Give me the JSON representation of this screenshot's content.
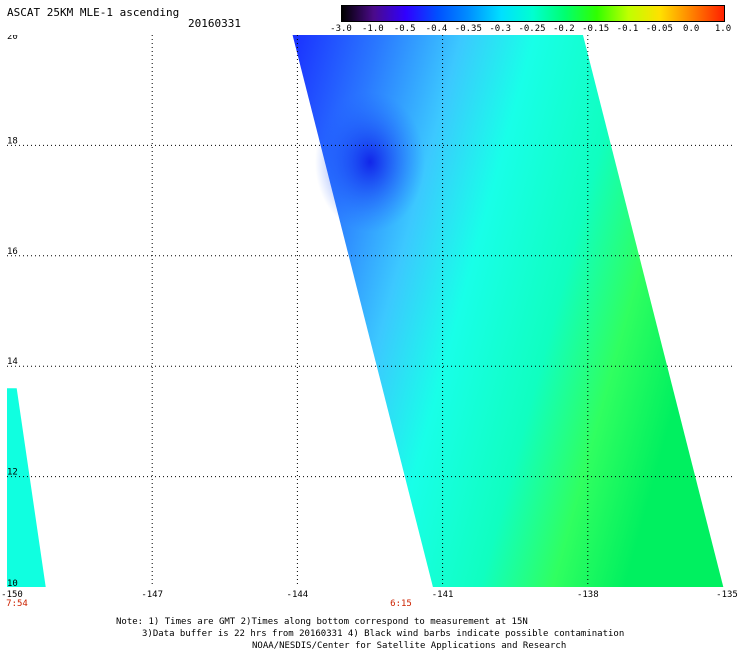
{
  "header": {
    "title": "ASCAT 25KM MLE-1 ascending",
    "date": "20160331"
  },
  "colorbar": {
    "labels": [
      "-3.0",
      "-1.0",
      "-0.5",
      "-0.4",
      "-0.35",
      "-0.3",
      "-0.25",
      "-0.2",
      "-0.15",
      "-0.1",
      "-0.05",
      "0.0",
      "1.0"
    ],
    "colors": [
      "#000000",
      "#4b0a8a",
      "#3000ff",
      "#0050ff",
      "#0090ff",
      "#00e0ff",
      "#00ffd0",
      "#00ff70",
      "#30ff00",
      "#c0ff00",
      "#ffe000",
      "#ff8000",
      "#ff2000"
    ]
  },
  "map": {
    "lon_range": [
      -150,
      -135
    ],
    "lat_range": [
      10,
      20
    ],
    "lat_ticks": [
      "20",
      "18",
      "16",
      "14",
      "12",
      "10"
    ],
    "lon_ticks": [
      "-150",
      "-147",
      "-144",
      "-141",
      "-138",
      "-135"
    ],
    "time_labels": [
      {
        "lon": -150,
        "text": "7:54"
      },
      {
        "lon": -142,
        "text": "6:15"
      }
    ],
    "swaths": [
      {
        "id": "main",
        "corners": [
          [
            -144.1,
            20
          ],
          [
            -138.1,
            20
          ],
          [
            -135.2,
            10
          ],
          [
            -141.2,
            10
          ]
        ]
      },
      {
        "id": "left",
        "corners": [
          [
            -150,
            13.6
          ],
          [
            -149.8,
            13.6
          ],
          [
            -149.2,
            10
          ],
          [
            -150,
            10
          ]
        ]
      }
    ]
  },
  "chart_data": {
    "type": "heatmap",
    "title": "ASCAT 25KM MLE-1 ascending",
    "date": "20160331",
    "xlim": [
      -150,
      -135
    ],
    "ylim": [
      10,
      20
    ],
    "xticks": [
      -150,
      -147,
      -144,
      -141,
      -138,
      -135
    ],
    "yticks": [
      10,
      12,
      14,
      16,
      18,
      20
    ],
    "value_scale": [
      -3.0,
      -1.0,
      -0.5,
      -0.4,
      -0.35,
      -0.3,
      -0.25,
      -0.2,
      -0.15,
      -0.1,
      -0.05,
      0.0,
      1.0
    ],
    "grid": true
  },
  "notes": {
    "line1": "Note: 1) Times are GMT 2)Times along bottom correspond to measurement at 15N",
    "line2": "3)Data buffer is 22 hrs from 20160331 4) Black wind barbs indicate possible contamination",
    "line3": "NOAA/NESDIS/Center for Satellite Applications and Research"
  }
}
